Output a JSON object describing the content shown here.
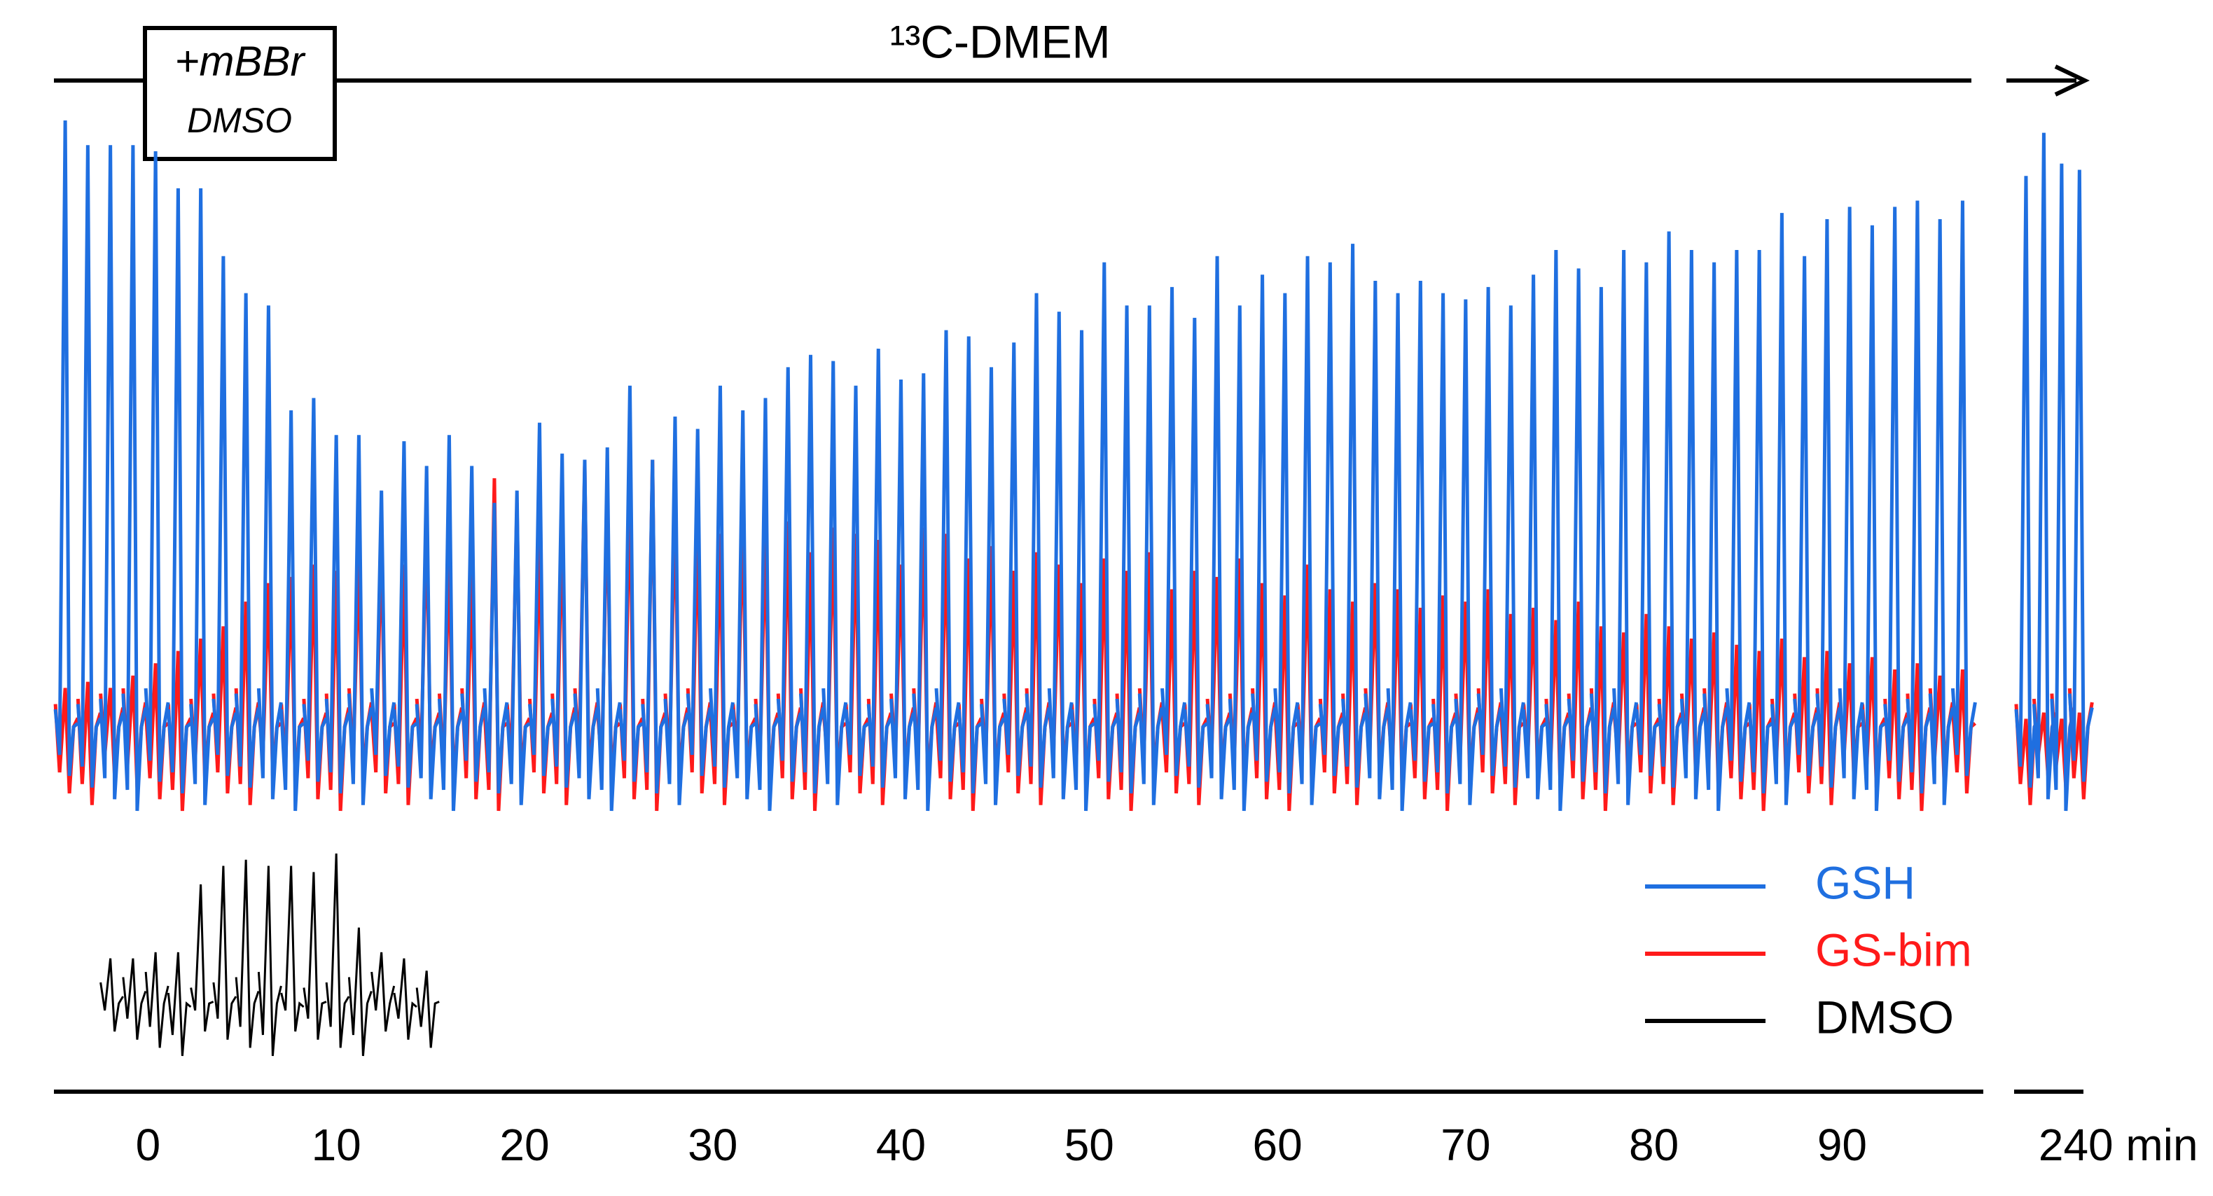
{
  "chart_data": {
    "type": "spike",
    "annotations": {
      "medium": "¹³C-DMEM",
      "treatment": "+mBBr",
      "vehicle": "DMSO"
    },
    "x": [
      -4.4,
      -3.2,
      -2.0,
      -0.8,
      0.4,
      1.6,
      2.8,
      4.0,
      5.2,
      6.4,
      7.6,
      8.8,
      10.0,
      11.2,
      12.4,
      13.6,
      14.8,
      16.0,
      17.2,
      18.4,
      19.6,
      20.8,
      22.0,
      23.2,
      24.4,
      25.6,
      26.8,
      28.0,
      29.2,
      30.4,
      31.6,
      32.8,
      34.0,
      35.2,
      36.4,
      37.6,
      38.8,
      40.0,
      41.2,
      42.4,
      43.6,
      44.8,
      46.0,
      47.2,
      48.4,
      49.6,
      50.8,
      52.0,
      53.2,
      54.4,
      55.6,
      56.8,
      58.0,
      59.2,
      60.4,
      61.6,
      62.8,
      64.0,
      65.2,
      66.4,
      67.6,
      68.8,
      70.0,
      71.2,
      72.4,
      73.6,
      74.8,
      76.0,
      77.2,
      78.4,
      79.6,
      80.8,
      82.0,
      83.2,
      84.4,
      85.6,
      86.8,
      88.0,
      89.2,
      90.4,
      91.6,
      92.8,
      94.0,
      95.2,
      96.4,
      237.6,
      238.5,
      239.4,
      240.3
    ],
    "series": [
      {
        "name": "GSH",
        "color": "#1f6fe0",
        "values": [
          100,
          96,
          96,
          96,
          95,
          89,
          89,
          78,
          72,
          70,
          53,
          55,
          49,
          49,
          40,
          48,
          44,
          49,
          44,
          38,
          40,
          51,
          46,
          45,
          47,
          57,
          45,
          52,
          50,
          57,
          53,
          55,
          60,
          62,
          61,
          57,
          63,
          58,
          59,
          66,
          65,
          60,
          64,
          72,
          69,
          66,
          77,
          70,
          70,
          73,
          68,
          78,
          70,
          75,
          72,
          78,
          77,
          80,
          74,
          72,
          74,
          72,
          71,
          73,
          70,
          75,
          79,
          76,
          73,
          79,
          77,
          82,
          79,
          77,
          79,
          79,
          85,
          78,
          84,
          86,
          83,
          86,
          87,
          84,
          87,
          91,
          98,
          93,
          92
        ]
      },
      {
        "name": "GS-bim",
        "color": "#ff1a1a",
        "values": [
          8,
          9,
          8,
          10,
          12,
          14,
          16,
          18,
          22,
          25,
          26,
          28,
          27,
          30,
          33,
          28,
          35,
          30,
          27,
          42,
          38,
          33,
          36,
          44,
          40,
          42,
          45,
          38,
          35,
          33,
          36,
          33,
          35,
          30,
          34,
          33,
          32,
          28,
          34,
          33,
          29,
          31,
          27,
          30,
          28,
          25,
          29,
          27,
          30,
          24,
          27,
          26,
          29,
          25,
          23,
          28,
          24,
          22,
          25,
          24,
          21,
          23,
          22,
          24,
          20,
          21,
          19,
          22,
          18,
          17,
          20,
          18,
          16,
          17,
          15,
          14,
          16,
          13,
          14,
          12,
          13,
          11,
          12,
          10,
          11,
          3,
          4,
          3,
          4
        ]
      },
      {
        "name": "DMSO",
        "color": "#000000",
        "x": [
          -2.0,
          -0.8,
          0.4,
          1.6,
          2.8,
          4.0,
          5.2,
          6.4,
          7.6,
          8.8,
          10.0,
          11.2,
          12.4,
          13.6,
          14.8
        ],
        "values": [
          9,
          9,
          10,
          10,
          21,
          24,
          25,
          24,
          24,
          23,
          26,
          14,
          10,
          9,
          7
        ]
      }
    ],
    "xlim": [
      -5,
      240.5
    ],
    "axis_break": [
      97.5,
      237
    ],
    "ylim": [
      -20,
      100
    ],
    "xticks": [
      0,
      10,
      20,
      30,
      40,
      50,
      60,
      70,
      80,
      90,
      {
        "value": 240,
        "label": "240 min"
      }
    ],
    "grid": false,
    "legend": "lower-right"
  }
}
